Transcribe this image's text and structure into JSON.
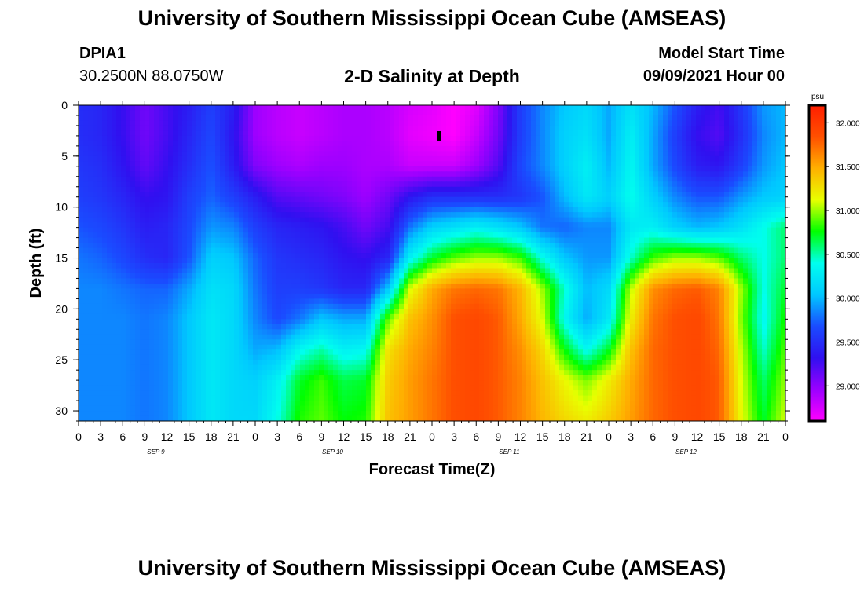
{
  "header": {
    "title_top": "University of Southern Mississippi Ocean Cube (AMSEAS)",
    "title_bottom": "University of Southern Mississippi Ocean Cube (AMSEAS)",
    "station_id": "DPIA1",
    "station_coords": "30.2500N  88.0750W",
    "model_start_label": "Model Start Time",
    "model_start_value": "09/09/2021 Hour 00"
  },
  "colors": {
    "ramp": [
      "#ff00ff",
      "#9b00ff",
      "#3010f0",
      "#1a4cff",
      "#00c8ff",
      "#00ffee",
      "#00ff00",
      "#e8ff00",
      "#ffb000",
      "#ff5000",
      "#ff1e00"
    ]
  },
  "chart_data": {
    "type": "heatmap",
    "title": "2-D Salinity at Depth",
    "xlabel": "Forecast Time(Z)",
    "ylabel": "Depth (ft)",
    "colorbar_unit": "psu",
    "colorbar_range": [
      28.6,
      32.2
    ],
    "colorbar_ticks": [
      "32.000",
      "31.500",
      "31.000",
      "30.500",
      "30.000",
      "29.500",
      "29.000"
    ],
    "colorbar_tick_values": [
      32.0,
      31.5,
      31.0,
      30.5,
      30.0,
      29.5,
      29.0
    ],
    "xlim_hours": [
      0,
      96
    ],
    "ylim_ft": [
      0,
      31
    ],
    "y_ticks": [
      0,
      5,
      10,
      15,
      20,
      25,
      30
    ],
    "y_tick_labels": [
      "0",
      "5",
      "10",
      "15",
      "20",
      "25",
      "30"
    ],
    "x_tick_labels": [
      "0",
      "3",
      "6",
      "9",
      "12",
      "15",
      "18",
      "21",
      "0",
      "3",
      "6",
      "9",
      "12",
      "15",
      "18",
      "21",
      "0",
      "3",
      "6",
      "9",
      "12",
      "15",
      "18",
      "21",
      "0",
      "3",
      "6",
      "9",
      "12",
      "15",
      "18",
      "21",
      "0"
    ],
    "date_labels": [
      "SEP 9",
      "SEP 10",
      "SEP 11",
      "SEP 12"
    ],
    "depths_ft": [
      0,
      3,
      6,
      9,
      12,
      15,
      18,
      21,
      24,
      27,
      31
    ],
    "times_hr": [
      0,
      3,
      6,
      9,
      12,
      15,
      18,
      21,
      24,
      27,
      30,
      33,
      36,
      39,
      42,
      45,
      48,
      51,
      54,
      57,
      60,
      63,
      66,
      69,
      72,
      75,
      78,
      81,
      84,
      87,
      90,
      93,
      96
    ],
    "salinity_psu": [
      [
        29.5,
        29.45,
        29.3,
        29.1,
        29.25,
        29.4,
        29.6,
        29.4,
        28.95,
        28.85,
        28.8,
        28.85,
        28.9,
        28.9,
        28.85,
        28.75,
        28.7,
        28.6,
        28.7,
        29.05,
        29.6,
        29.85,
        30.05,
        30.15,
        29.95,
        30.2,
        30.0,
        29.7,
        29.4,
        29.25,
        29.55,
        29.9,
        30.0
      ],
      [
        29.5,
        29.45,
        29.3,
        29.1,
        29.25,
        29.45,
        29.65,
        29.35,
        28.95,
        28.85,
        28.8,
        28.85,
        28.9,
        28.9,
        28.85,
        28.7,
        28.65,
        28.6,
        28.8,
        29.1,
        29.6,
        29.85,
        30.1,
        30.2,
        29.95,
        30.3,
        29.95,
        29.6,
        29.3,
        29.2,
        29.5,
        29.85,
        30.0
      ],
      [
        29.55,
        29.5,
        29.35,
        29.15,
        29.3,
        29.5,
        29.7,
        29.4,
        29.05,
        28.95,
        28.9,
        28.95,
        28.95,
        28.9,
        28.9,
        28.8,
        28.8,
        28.8,
        28.95,
        29.2,
        29.65,
        29.85,
        30.1,
        30.3,
        30.0,
        30.35,
        29.95,
        29.65,
        29.4,
        29.35,
        29.6,
        29.9,
        30.05
      ],
      [
        29.6,
        29.55,
        29.45,
        29.3,
        29.35,
        29.6,
        29.75,
        29.6,
        29.4,
        29.2,
        29.15,
        29.1,
        29.05,
        28.95,
        29.1,
        29.35,
        29.5,
        29.5,
        29.5,
        29.5,
        29.55,
        29.7,
        30.0,
        30.25,
        30.1,
        30.4,
        30.1,
        29.85,
        29.7,
        29.7,
        29.9,
        30.05,
        30.1
      ],
      [
        29.7,
        29.65,
        29.55,
        29.4,
        29.45,
        29.65,
        29.9,
        29.85,
        29.6,
        29.45,
        29.4,
        29.35,
        29.25,
        29.1,
        29.25,
        29.8,
        30.1,
        30.2,
        30.3,
        30.2,
        30.05,
        29.8,
        29.75,
        29.85,
        29.85,
        30.25,
        30.3,
        30.1,
        30.0,
        30.05,
        30.2,
        30.4,
        30.6
      ],
      [
        29.8,
        29.75,
        29.65,
        29.5,
        29.45,
        29.7,
        30.1,
        30.05,
        29.75,
        29.55,
        29.5,
        29.45,
        29.35,
        29.3,
        29.45,
        30.3,
        30.7,
        30.9,
        31.0,
        31.0,
        30.85,
        30.4,
        30.05,
        29.9,
        29.9,
        30.45,
        30.85,
        31.0,
        31.0,
        30.9,
        30.6,
        30.4,
        30.6
      ],
      [
        29.85,
        29.85,
        29.8,
        29.75,
        29.75,
        29.95,
        30.2,
        30.15,
        29.8,
        29.6,
        29.6,
        29.55,
        29.45,
        29.45,
        30.05,
        31.1,
        31.5,
        31.7,
        31.75,
        31.7,
        31.45,
        31.0,
        30.45,
        30.0,
        30.15,
        31.05,
        31.6,
        31.75,
        31.8,
        31.65,
        31.0,
        30.4,
        30.7
      ],
      [
        29.85,
        29.85,
        29.85,
        29.8,
        29.85,
        30.05,
        30.25,
        30.15,
        29.85,
        29.65,
        29.8,
        30.05,
        29.95,
        29.95,
        30.9,
        31.4,
        31.6,
        31.85,
        31.9,
        31.8,
        31.5,
        31.1,
        30.35,
        29.95,
        30.25,
        31.2,
        31.7,
        31.85,
        31.9,
        31.7,
        30.95,
        30.35,
        30.8
      ],
      [
        29.85,
        29.85,
        29.85,
        29.8,
        29.85,
        30.05,
        30.25,
        30.15,
        29.95,
        30.0,
        30.35,
        30.5,
        30.3,
        30.35,
        31.25,
        31.5,
        31.65,
        31.85,
        31.9,
        31.8,
        31.6,
        31.3,
        30.75,
        30.35,
        30.7,
        31.4,
        31.75,
        31.85,
        31.9,
        31.75,
        31.05,
        30.45,
        30.9
      ],
      [
        29.85,
        29.85,
        29.85,
        29.8,
        29.85,
        30.05,
        30.25,
        30.15,
        30.1,
        30.3,
        30.7,
        30.85,
        30.65,
        30.7,
        31.35,
        31.55,
        31.7,
        31.85,
        31.9,
        31.8,
        31.65,
        31.4,
        31.15,
        30.95,
        31.2,
        31.5,
        31.75,
        31.85,
        31.9,
        31.8,
        31.1,
        30.6,
        31.0
      ],
      [
        29.85,
        29.85,
        29.85,
        29.8,
        29.85,
        30.05,
        30.25,
        30.15,
        30.15,
        30.4,
        30.8,
        30.9,
        30.75,
        30.8,
        31.4,
        31.55,
        31.7,
        31.85,
        31.9,
        31.8,
        31.65,
        31.45,
        31.3,
        31.2,
        31.35,
        31.55,
        31.75,
        31.85,
        31.9,
        31.8,
        31.15,
        30.7,
        31.1
      ]
    ]
  }
}
